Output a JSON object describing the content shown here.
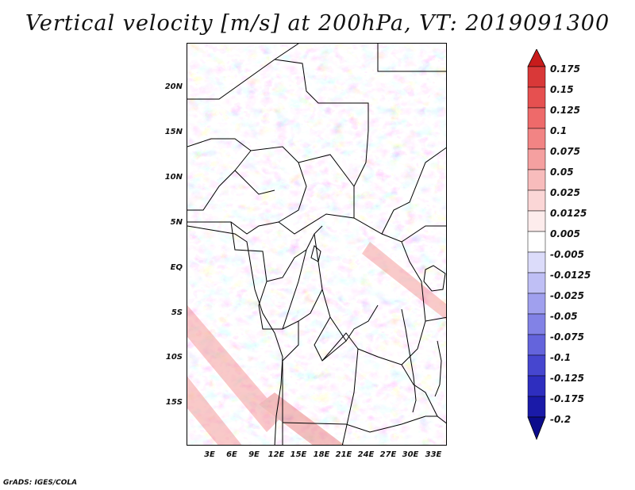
{
  "title": "Vertical velocity [m/s] at 200hPa, VT: 2019091300",
  "lat_labels": [
    "20N",
    "15N",
    "10N",
    "5N",
    "EQ",
    "5S",
    "10S",
    "15S"
  ],
  "lon_labels": [
    "3E",
    "6E",
    "9E",
    "12E",
    "15E",
    "18E",
    "21E",
    "24E",
    "27E",
    "30E",
    "33E"
  ],
  "colorbar": {
    "labels": [
      "0.175",
      "0.15",
      "0.125",
      "0.1",
      "0.075",
      "0.05",
      "0.025",
      "0.0125",
      "0.005",
      "-0.005",
      "-0.0125",
      "-0.025",
      "-0.05",
      "-0.075",
      "-0.1",
      "-0.125",
      "-0.175",
      "-0.2"
    ],
    "colors": [
      "#c81c1c",
      "#d93838",
      "#e65050",
      "#ee6a6a",
      "#f28484",
      "#f5a0a0",
      "#f8bcbc",
      "#fbd6d6",
      "#fdecec",
      "#ffffff",
      "#dcdcfa",
      "#bfbff5",
      "#a0a0ee",
      "#8282e6",
      "#6464dc",
      "#4646cf",
      "#2e2ebf",
      "#1a1aa8",
      "#0c0c8c"
    ]
  },
  "footer": "GrADS: IGES/COLA"
}
